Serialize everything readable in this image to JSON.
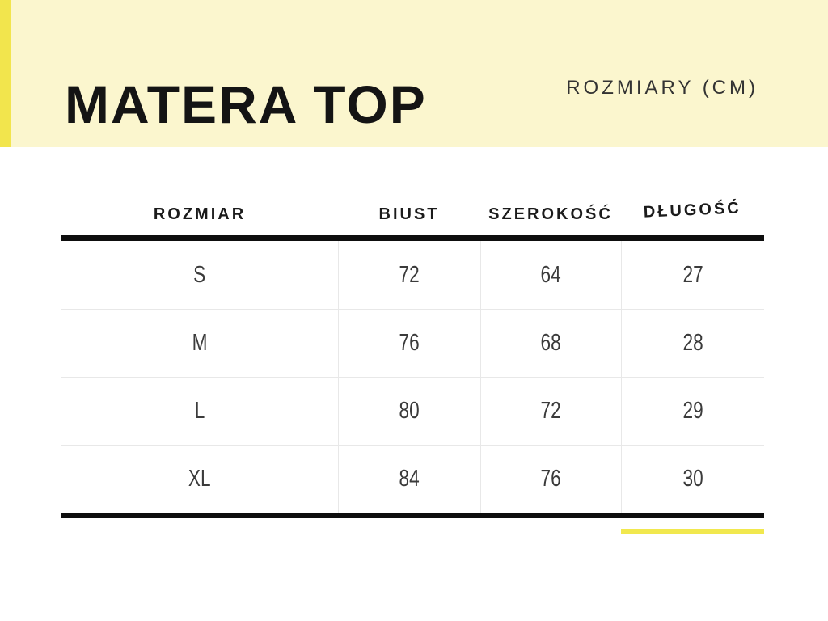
{
  "colors": {
    "banner_bg": "#FBF6CE",
    "accent_yellow": "#F2E54D",
    "underline_yellow": "#F1E84E",
    "rule_black": "#0E0E0E",
    "grid_gray": "#E8E8E8",
    "title_text": "#141414",
    "subtitle_text": "#333333",
    "header_text": "#1B1B1B",
    "cell_text": "#3B3B3B"
  },
  "banner": {
    "title": "MATERA TOP",
    "subtitle": "ROZMIARY (CM)"
  },
  "chart_data": {
    "type": "table",
    "title": "MATERA TOP",
    "subtitle": "ROZMIARY (CM)",
    "unit": "cm",
    "columns": [
      "ROZMIAR",
      "BIUST",
      "SZEROKOŚĆ",
      "DŁUGOŚĆ"
    ],
    "rows": [
      [
        "S",
        "72",
        "64",
        "27"
      ],
      [
        "M",
        "76",
        "68",
        "28"
      ],
      [
        "L",
        "80",
        "72",
        "29"
      ],
      [
        "XL",
        "84",
        "76",
        "30"
      ]
    ],
    "highlighted_column": "DŁUGOŚĆ"
  }
}
